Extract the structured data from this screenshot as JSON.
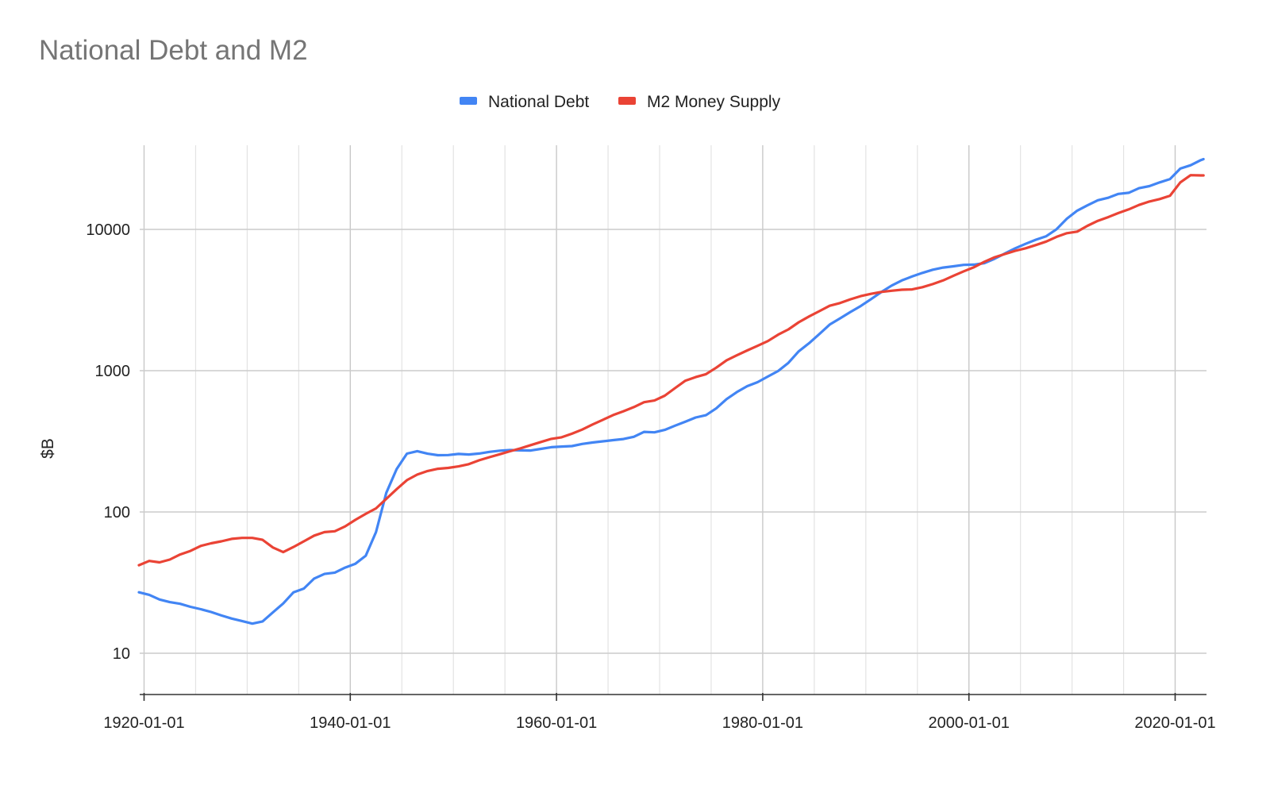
{
  "chart_data": {
    "type": "line",
    "title": "National Debt and M2",
    "xlabel": "",
    "ylabel": "$B",
    "yscale": "log",
    "ylim": [
      5,
      31500
    ],
    "xlim": [
      "1919-07-01",
      "2022-10-01"
    ],
    "grid": true,
    "legend": "top-center",
    "x_ticks": [
      "1920-01-01",
      "1940-01-01",
      "1960-01-01",
      "1980-01-01",
      "2000-01-01",
      "2020-01-01"
    ],
    "y_ticks": [
      10,
      100,
      1000,
      10000
    ],
    "y_tick_labels": [
      "10",
      "100",
      "1000",
      "10000"
    ],
    "series": [
      {
        "name": "National Debt",
        "color": "#4285f4",
        "points": [
          [
            "1919-07-01",
            27
          ],
          [
            "1920-07-01",
            25.9
          ],
          [
            "1921-07-01",
            24
          ],
          [
            "1922-07-01",
            23
          ],
          [
            "1923-07-01",
            22.4
          ],
          [
            "1924-07-01",
            21.3
          ],
          [
            "1925-07-01",
            20.5
          ],
          [
            "1926-07-01",
            19.6
          ],
          [
            "1927-07-01",
            18.5
          ],
          [
            "1928-07-01",
            17.6
          ],
          [
            "1929-07-01",
            16.9
          ],
          [
            "1930-07-01",
            16.2
          ],
          [
            "1931-07-01",
            16.8
          ],
          [
            "1932-07-01",
            19.5
          ],
          [
            "1933-07-01",
            22.5
          ],
          [
            "1934-07-01",
            27
          ],
          [
            "1935-07-01",
            28.7
          ],
          [
            "1936-07-01",
            33.8
          ],
          [
            "1937-07-01",
            36.4
          ],
          [
            "1938-07-01",
            37.2
          ],
          [
            "1939-07-01",
            40.4
          ],
          [
            "1940-07-01",
            43
          ],
          [
            "1941-07-01",
            49
          ],
          [
            "1942-07-01",
            72
          ],
          [
            "1943-07-01",
            136.7
          ],
          [
            "1944-07-01",
            201
          ],
          [
            "1945-07-01",
            258.7
          ],
          [
            "1946-07-01",
            269.4
          ],
          [
            "1947-07-01",
            258.3
          ],
          [
            "1948-07-01",
            252.3
          ],
          [
            "1949-07-01",
            252.8
          ],
          [
            "1950-07-01",
            257.4
          ],
          [
            "1951-07-01",
            255.2
          ],
          [
            "1952-07-01",
            259.1
          ],
          [
            "1953-07-01",
            266.1
          ],
          [
            "1954-07-01",
            271.3
          ],
          [
            "1955-07-01",
            274.4
          ],
          [
            "1956-07-01",
            272.7
          ],
          [
            "1957-07-01",
            272.3
          ],
          [
            "1958-07-01",
            279.7
          ],
          [
            "1959-07-01",
            287.5
          ],
          [
            "1960-07-01",
            290.5
          ],
          [
            "1961-07-01",
            292.6
          ],
          [
            "1962-07-01",
            302.9
          ],
          [
            "1963-07-01",
            310.3
          ],
          [
            "1964-07-01",
            316.1
          ],
          [
            "1965-07-01",
            322.3
          ],
          [
            "1966-07-01",
            328.5
          ],
          [
            "1967-07-01",
            340.4
          ],
          [
            "1968-07-01",
            368.7
          ],
          [
            "1969-07-01",
            365.8
          ],
          [
            "1970-07-01",
            380.9
          ],
          [
            "1971-07-01",
            408.2
          ],
          [
            "1972-07-01",
            435.9
          ],
          [
            "1973-07-01",
            466.3
          ],
          [
            "1974-07-01",
            483.9
          ],
          [
            "1975-07-01",
            541.9
          ],
          [
            "1976-07-01",
            629
          ],
          [
            "1977-07-01",
            706.4
          ],
          [
            "1978-07-01",
            776.6
          ],
          [
            "1979-07-01",
            829.5
          ],
          [
            "1980-07-01",
            909
          ],
          [
            "1981-07-01",
            994.8
          ],
          [
            "1982-07-01",
            1137.3
          ],
          [
            "1983-07-01",
            1371.7
          ],
          [
            "1984-07-01",
            1564.6
          ],
          [
            "1985-07-01",
            1817.4
          ],
          [
            "1986-07-01",
            2120.5
          ],
          [
            "1987-07-01",
            2346
          ],
          [
            "1988-07-01",
            2601.1
          ],
          [
            "1989-07-01",
            2867.8
          ],
          [
            "1990-07-01",
            3206.3
          ],
          [
            "1991-07-01",
            3598.2
          ],
          [
            "1992-07-01",
            4001.8
          ],
          [
            "1993-07-01",
            4351
          ],
          [
            "1994-07-01",
            4643.3
          ],
          [
            "1995-07-01",
            4920.6
          ],
          [
            "1996-07-01",
            5181.5
          ],
          [
            "1997-07-01",
            5369.2
          ],
          [
            "1998-07-01",
            5478.2
          ],
          [
            "1999-07-01",
            5605.5
          ],
          [
            "2000-07-01",
            5628.7
          ],
          [
            "2001-07-01",
            5769.9
          ],
          [
            "2002-07-01",
            6198.4
          ],
          [
            "2003-07-01",
            6760
          ],
          [
            "2004-07-01",
            7354.7
          ],
          [
            "2005-07-01",
            7905.3
          ],
          [
            "2006-07-01",
            8451.4
          ],
          [
            "2007-07-01",
            8950.7
          ],
          [
            "2008-07-01",
            10024.7
          ],
          [
            "2009-07-01",
            11909.8
          ],
          [
            "2010-07-01",
            13561.6
          ],
          [
            "2011-07-01",
            14790.3
          ],
          [
            "2012-07-01",
            16066.2
          ],
          [
            "2013-07-01",
            16738.2
          ],
          [
            "2014-07-01",
            17824.1
          ],
          [
            "2015-07-01",
            18150.6
          ],
          [
            "2016-07-01",
            19573.4
          ],
          [
            "2017-07-01",
            20244.9
          ],
          [
            "2018-07-01",
            21516.1
          ],
          [
            "2019-07-01",
            22719.4
          ],
          [
            "2020-07-01",
            26945.4
          ],
          [
            "2021-07-01",
            28428.9
          ],
          [
            "2022-07-01",
            30928.9
          ],
          [
            "2022-10-01",
            31400
          ]
        ]
      },
      {
        "name": "M2 Money Supply",
        "color": "#ea4335",
        "points": [
          [
            "1919-07-01",
            42
          ],
          [
            "1920-07-01",
            45
          ],
          [
            "1921-07-01",
            44
          ],
          [
            "1922-07-01",
            46
          ],
          [
            "1923-07-01",
            50
          ],
          [
            "1924-07-01",
            53
          ],
          [
            "1925-07-01",
            57.5
          ],
          [
            "1926-07-01",
            60
          ],
          [
            "1927-07-01",
            62
          ],
          [
            "1928-07-01",
            64.5
          ],
          [
            "1929-07-01",
            65.5
          ],
          [
            "1930-07-01",
            65.5
          ],
          [
            "1931-07-01",
            63.5
          ],
          [
            "1932-07-01",
            56
          ],
          [
            "1933-07-01",
            52
          ],
          [
            "1934-07-01",
            56.5
          ],
          [
            "1935-07-01",
            62
          ],
          [
            "1936-07-01",
            68
          ],
          [
            "1937-07-01",
            72
          ],
          [
            "1938-07-01",
            73
          ],
          [
            "1939-07-01",
            79
          ],
          [
            "1940-07-01",
            88
          ],
          [
            "1941-07-01",
            97
          ],
          [
            "1942-07-01",
            106
          ],
          [
            "1943-07-01",
            124
          ],
          [
            "1944-07-01",
            145
          ],
          [
            "1945-07-01",
            168
          ],
          [
            "1946-07-01",
            184
          ],
          [
            "1947-07-01",
            195
          ],
          [
            "1948-07-01",
            202
          ],
          [
            "1949-07-01",
            205
          ],
          [
            "1950-07-01",
            210
          ],
          [
            "1951-07-01",
            218
          ],
          [
            "1952-07-01",
            232
          ],
          [
            "1953-07-01",
            244
          ],
          [
            "1954-07-01",
            256
          ],
          [
            "1955-07-01",
            269
          ],
          [
            "1956-07-01",
            282
          ],
          [
            "1957-07-01",
            297
          ],
          [
            "1958-07-01",
            313
          ],
          [
            "1959-07-01",
            329
          ],
          [
            "1960-07-01",
            338
          ],
          [
            "1961-07-01",
            358
          ],
          [
            "1962-07-01",
            383
          ],
          [
            "1963-07-01",
            416
          ],
          [
            "1964-07-01",
            449
          ],
          [
            "1965-07-01",
            485
          ],
          [
            "1966-07-01",
            516
          ],
          [
            "1967-07-01",
            552
          ],
          [
            "1968-07-01",
            598
          ],
          [
            "1969-07-01",
            615
          ],
          [
            "1970-07-01",
            665
          ],
          [
            "1971-07-01",
            752
          ],
          [
            "1972-07-01",
            850
          ],
          [
            "1973-07-01",
            900
          ],
          [
            "1974-07-01",
            945
          ],
          [
            "1975-07-01",
            1050
          ],
          [
            "1976-07-01",
            1185
          ],
          [
            "1977-07-01",
            1285
          ],
          [
            "1978-07-01",
            1390
          ],
          [
            "1979-07-01",
            1500
          ],
          [
            "1980-07-01",
            1620
          ],
          [
            "1981-07-01",
            1800
          ],
          [
            "1982-07-01",
            1960
          ],
          [
            "1983-07-01",
            2200
          ],
          [
            "1984-07-01",
            2420
          ],
          [
            "1985-07-01",
            2640
          ],
          [
            "1986-07-01",
            2880
          ],
          [
            "1987-07-01",
            3010
          ],
          [
            "1988-07-01",
            3200
          ],
          [
            "1989-07-01",
            3370
          ],
          [
            "1990-07-01",
            3500
          ],
          [
            "1991-07-01",
            3610
          ],
          [
            "1992-07-01",
            3680
          ],
          [
            "1993-07-01",
            3740
          ],
          [
            "1994-07-01",
            3760
          ],
          [
            "1995-07-01",
            3900
          ],
          [
            "1996-07-01",
            4100
          ],
          [
            "1997-07-01",
            4350
          ],
          [
            "1998-07-01",
            4700
          ],
          [
            "1999-07-01",
            5050
          ],
          [
            "2000-07-01",
            5400
          ],
          [
            "2001-07-01",
            5900
          ],
          [
            "2002-07-01",
            6350
          ],
          [
            "2003-07-01",
            6700
          ],
          [
            "2004-07-01",
            7050
          ],
          [
            "2005-07-01",
            7350
          ],
          [
            "2006-07-01",
            7750
          ],
          [
            "2007-07-01",
            8200
          ],
          [
            "2008-07-01",
            8850
          ],
          [
            "2009-07-01",
            9400
          ],
          [
            "2010-07-01",
            9650
          ],
          [
            "2011-07-01",
            10600
          ],
          [
            "2012-07-01",
            11500
          ],
          [
            "2013-07-01",
            12200
          ],
          [
            "2014-07-01",
            13050
          ],
          [
            "2015-07-01",
            13850
          ],
          [
            "2016-07-01",
            14900
          ],
          [
            "2017-07-01",
            15750
          ],
          [
            "2018-07-01",
            16400
          ],
          [
            "2019-07-01",
            17300
          ],
          [
            "2020-07-01",
            21500
          ],
          [
            "2021-07-01",
            24200
          ],
          [
            "2022-07-01",
            24100
          ],
          [
            "2022-10-01",
            24100
          ]
        ]
      }
    ]
  }
}
